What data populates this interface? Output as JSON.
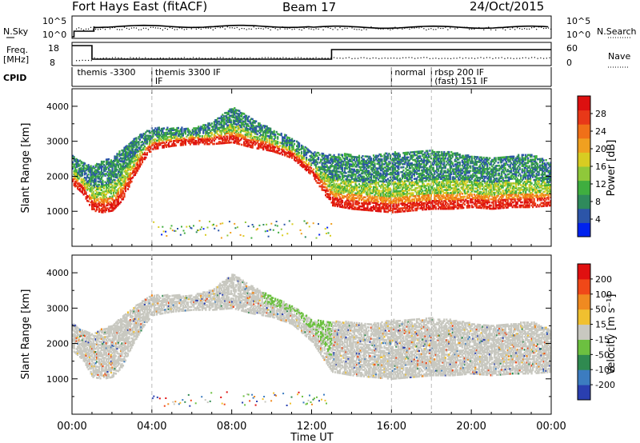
{
  "header": {
    "radar": "Fort Hays East (fitACF)",
    "beam": "Beam 17",
    "date": "24/Oct/2015"
  },
  "strip_nsky": {
    "left_label": "N.Sky",
    "left_ticks": [
      "10^5",
      "10^0"
    ],
    "right_ticks": [
      "10^5",
      "10^0"
    ],
    "right_label": "N.Search"
  },
  "strip_freq": {
    "left_label_1": "Freq.",
    "left_label_2": "[MHz]",
    "left_ticks": [
      "18",
      "8"
    ],
    "right_ticks": [
      "60",
      "0"
    ],
    "right_label": "Nave"
  },
  "cpid": {
    "label": "CPID",
    "segments": [
      {
        "lines": [
          "themis -3300"
        ],
        "start_hour": 0.1
      },
      {
        "lines": [
          "themis 3300 IF",
          "IF"
        ],
        "start_hour": 4.0
      },
      {
        "lines": [
          "normal"
        ],
        "start_hour": 16.0
      },
      {
        "lines": [
          "rbsp 200 IF",
          "(fast) 151 IF"
        ],
        "start_hour": 18.0
      }
    ]
  },
  "x_axis": {
    "ticks": [
      "00:00",
      "04:00",
      "08:00",
      "12:00",
      "16:00",
      "20:00",
      "00:00"
    ],
    "label": "Time UT"
  },
  "power_panel": {
    "ylabel": "Slant Range [km]",
    "yticks": [
      "4000",
      "3000",
      "2000",
      "1000"
    ],
    "colorbar_label": "Power [dB]",
    "colorbar_ticks": [
      "28",
      "24",
      "20",
      "16",
      "12",
      "8",
      "4"
    ],
    "colors": [
      "#0022ee",
      "#2c55a8",
      "#2f8a5c",
      "#3fae3f",
      "#8fc83a",
      "#d8cc22",
      "#f0a020",
      "#f07018",
      "#e83818",
      "#dd1010"
    ]
  },
  "velocity_panel": {
    "ylabel": "Slant Range [km]",
    "yticks": [
      "4000",
      "3000",
      "2000",
      "1000"
    ],
    "colorbar_label": "Velocity [m s⁻¹]",
    "colorbar_ticks": [
      "200",
      "100",
      "50",
      "15",
      "-15",
      "-50",
      "-100",
      "-200"
    ],
    "colors": [
      "#2a3fb0",
      "#3c7cc0",
      "#2f8a50",
      "#6cc040",
      "#c8c8c0",
      "#f0c030",
      "#f08a20",
      "#f04818",
      "#e01010"
    ]
  },
  "chart_data": [
    {
      "type": "heatmap",
      "title": "Fort Hays East (fitACF) Beam 17 24/Oct/2015",
      "quantity": "Power",
      "units": "dB",
      "xlabel": "Time UT",
      "ylabel": "Slant Range [km]",
      "xlim_hours": [
        0,
        24
      ],
      "ylim": [
        0,
        4500
      ],
      "colorbar_range": [
        0,
        30
      ],
      "scatter_band": {
        "time_hours": [
          0.0,
          0.5,
          1.0,
          1.5,
          2.0,
          2.5,
          3.0,
          3.5,
          4.0,
          5.0,
          6.0,
          7.0,
          8.0,
          9.0,
          10.0,
          11.0,
          12.0,
          13.0,
          14.0,
          15.0,
          16.0,
          17.0,
          18.0,
          19.0,
          20.0,
          21.0,
          22.0,
          23.0,
          24.0
        ],
        "lower_edge_km": [
          1950,
          1700,
          1200,
          1150,
          1200,
          1500,
          2100,
          2600,
          2950,
          3050,
          3100,
          3100,
          3150,
          3000,
          2900,
          2700,
          2200,
          1350,
          1250,
          1200,
          1150,
          1200,
          1250,
          1250,
          1300,
          1250,
          1300,
          1300,
          1350
        ],
        "upper_edge_km": [
          2500,
          2300,
          2200,
          2350,
          2450,
          2700,
          2950,
          3150,
          3300,
          3300,
          3300,
          3450,
          3900,
          3550,
          3250,
          3000,
          2600,
          2550,
          2550,
          2500,
          2600,
          2600,
          2650,
          2600,
          2500,
          2450,
          2500,
          2550,
          2300
        ]
      }
    },
    {
      "type": "heatmap",
      "quantity": "Velocity",
      "units": "m s-1",
      "xlabel": "Time UT",
      "ylabel": "Slant Range [km]",
      "xlim_hours": [
        0,
        24
      ],
      "ylim": [
        0,
        4500
      ],
      "colorbar_range": [
        -250,
        250
      ],
      "dominant_velocity_m_s": 0
    }
  ]
}
